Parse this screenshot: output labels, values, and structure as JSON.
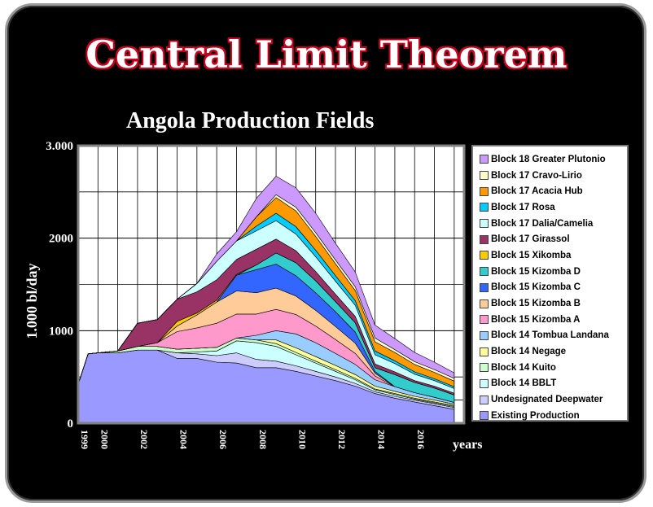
{
  "header": {
    "title": "Central Limit Theorem"
  },
  "chart_data": {
    "type": "area",
    "title": "Angola Production Fields",
    "ylabel": "1.000 bl/day",
    "xlabel": "years",
    "ylim": [
      0,
      3000
    ],
    "xlim": [
      1999,
      2018.5
    ],
    "y_ticks": [
      0,
      1000,
      2000,
      3000
    ],
    "y_tick_labels": [
      "0",
      "1000",
      "2000",
      "3.000"
    ],
    "x_ticks": [
      1999,
      2000,
      2002,
      2004,
      2006,
      2008,
      2010,
      2012,
      2014,
      2016
    ],
    "x_tick_labels": [
      "1999",
      "2000",
      "2002",
      "2004",
      "2006",
      "2008",
      "2010",
      "2012",
      "2014",
      "2016"
    ],
    "grid": true,
    "legend_position": "right",
    "stacked": true,
    "x": [
      1999,
      1999.5,
      2000,
      2001,
      2002,
      2003,
      2004,
      2005,
      2006,
      2007,
      2008,
      2009,
      2010,
      2011,
      2012,
      2013,
      2014,
      2015,
      2016,
      2017,
      2018
    ],
    "series": [
      {
        "name": "Existing Production",
        "color": "#9999ff",
        "values": [
          420,
          750,
          760,
          760,
          790,
          790,
          700,
          700,
          660,
          650,
          600,
          600,
          560,
          510,
          460,
          400,
          320,
          270,
          230,
          190,
          150
        ]
      },
      {
        "name": "Undesignated Deepwater",
        "color": "#ccccff",
        "values": [
          0,
          0,
          0,
          0,
          0,
          0,
          60,
          50,
          70,
          110,
          90,
          70,
          60,
          50,
          40,
          30,
          20,
          20,
          20,
          20,
          20
        ]
      },
      {
        "name": "Block 14 BBLT",
        "color": "#ccffff",
        "values": [
          0,
          0,
          0,
          0,
          0,
          0,
          0,
          20,
          50,
          130,
          180,
          160,
          120,
          90,
          60,
          40,
          20,
          20,
          10,
          10,
          10
        ]
      },
      {
        "name": "Block 14 Kuito",
        "color": "#ccffcc",
        "values": [
          0,
          0,
          0,
          20,
          40,
          40,
          40,
          40,
          40,
          30,
          30,
          30,
          25,
          20,
          20,
          15,
          10,
          10,
          10,
          10,
          10
        ]
      },
      {
        "name": "Block 14 Negage",
        "color": "#ffff99",
        "values": [
          0,
          0,
          0,
          0,
          0,
          0,
          0,
          0,
          0,
          0,
          0,
          40,
          50,
          50,
          45,
          40,
          30,
          25,
          20,
          20,
          15
        ]
      },
      {
        "name": "Block 14 Tombua Landana",
        "color": "#99ccff",
        "values": [
          0,
          0,
          0,
          0,
          0,
          0,
          0,
          0,
          0,
          0,
          50,
          100,
          150,
          150,
          130,
          110,
          70,
          50,
          40,
          30,
          20
        ]
      },
      {
        "name": "Block 15 Kizomba A",
        "color": "#ff99cc",
        "values": [
          0,
          0,
          0,
          0,
          0,
          40,
          190,
          220,
          260,
          260,
          230,
          230,
          210,
          180,
          150,
          120,
          40,
          0,
          0,
          0,
          0
        ]
      },
      {
        "name": "Block 15 Kizomba B",
        "color": "#ffcc99",
        "values": [
          0,
          0,
          0,
          0,
          0,
          0,
          60,
          140,
          230,
          250,
          230,
          230,
          200,
          170,
          140,
          110,
          30,
          0,
          0,
          0,
          0
        ]
      },
      {
        "name": "Block 15 Kizomba C",
        "color": "#3366ff",
        "values": [
          0,
          0,
          0,
          0,
          0,
          0,
          0,
          0,
          0,
          170,
          250,
          260,
          220,
          190,
          160,
          120,
          20,
          0,
          0,
          0,
          0
        ]
      },
      {
        "name": "Block 15 Kizomba D",
        "color": "#33cccc",
        "values": [
          0,
          0,
          0,
          0,
          0,
          0,
          0,
          0,
          0,
          0,
          50,
          120,
          140,
          130,
          110,
          100,
          40,
          130,
          110,
          100,
          80
        ]
      },
      {
        "name": "Block 15 Xikomba",
        "color": "#ffcc00",
        "values": [
          0,
          0,
          0,
          0,
          0,
          0,
          50,
          20,
          20,
          10,
          0,
          0,
          0,
          0,
          0,
          0,
          0,
          0,
          0,
          0,
          0
        ]
      },
      {
        "name": "Block 17 Girassol",
        "color": "#993366",
        "values": [
          0,
          0,
          0,
          0,
          250,
          250,
          240,
          230,
          220,
          160,
          170,
          150,
          130,
          100,
          80,
          70,
          40,
          30,
          20,
          20,
          20
        ]
      },
      {
        "name": "Block 17 Dalia/Camelia",
        "color": "#ccffff",
        "values": [
          0,
          0,
          0,
          0,
          0,
          0,
          0,
          90,
          200,
          200,
          200,
          200,
          180,
          160,
          140,
          120,
          100,
          90,
          70,
          60,
          50
        ]
      },
      {
        "name": "Block 17 Rosa",
        "color": "#00ccff",
        "values": [
          0,
          0,
          0,
          0,
          0,
          0,
          0,
          0,
          0,
          0,
          50,
          80,
          80,
          70,
          60,
          50,
          40,
          30,
          25,
          20,
          20
        ]
      },
      {
        "name": "Block 17 Acacia Hub",
        "color": "#ff9900",
        "values": [
          0,
          0,
          0,
          0,
          0,
          0,
          0,
          0,
          0,
          0,
          100,
          170,
          170,
          150,
          130,
          110,
          100,
          90,
          80,
          70,
          60
        ]
      },
      {
        "name": "Block 17 Cravo-Lirio",
        "color": "#ffffcc",
        "values": [
          0,
          0,
          0,
          0,
          0,
          0,
          0,
          0,
          0,
          0,
          0,
          30,
          40,
          40,
          40,
          40,
          40,
          30,
          30,
          30,
          30
        ]
      },
      {
        "name": "Block 18 Greater Plutonio",
        "color": "#cc99ff",
        "values": [
          0,
          0,
          0,
          0,
          0,
          0,
          0,
          0,
          80,
          100,
          200,
          200,
          210,
          210,
          180,
          160,
          140,
          120,
          100,
          80,
          60
        ]
      }
    ]
  }
}
